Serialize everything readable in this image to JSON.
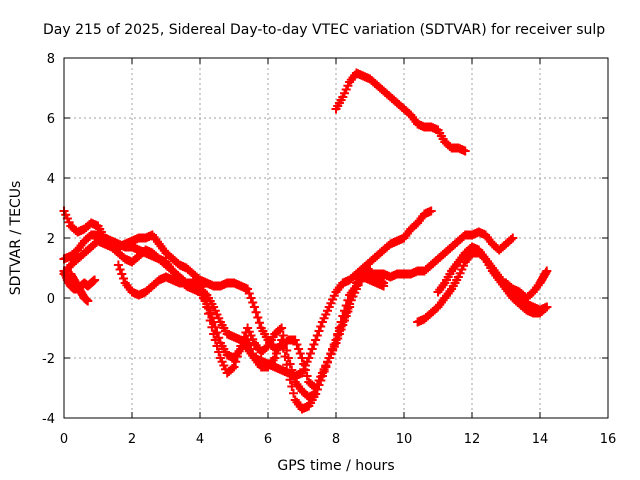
{
  "chart_data": {
    "type": "scatter",
    "title": "Day 215 of 2025, Sidereal Day-to-day VTEC variation (SDTVAR) for receiver sulp",
    "xlabel": "GPS time / hours",
    "ylabel": "SDTVAR / TECUs",
    "xlim": [
      0,
      16
    ],
    "ylim": [
      -4,
      8
    ],
    "xticks": [
      "0",
      "2",
      "4",
      "6",
      "8",
      "10",
      "12",
      "14",
      "16"
    ],
    "yticks": [
      "-4",
      "-2",
      "0",
      "2",
      "4",
      "6",
      "8"
    ],
    "grid": true,
    "marker": "plus",
    "color": "#ff0000",
    "series": [
      {
        "x": [
          0.0,
          0.2,
          0.4,
          0.6,
          0.8,
          1.0,
          1.2,
          1.4,
          1.6,
          1.8,
          2.0,
          2.2,
          2.4,
          2.6,
          2.8,
          3.0,
          3.2,
          3.4,
          3.6,
          3.8,
          4.0,
          4.2,
          4.4,
          4.6,
          4.8,
          5.0,
          5.2,
          5.4,
          5.6,
          5.8,
          6.0,
          6.2,
          6.4,
          6.6,
          6.8,
          7.0,
          7.2,
          7.4,
          7.6,
          7.8,
          8.0,
          8.2,
          8.4,
          8.6,
          8.8,
          9.0,
          9.2,
          9.4,
          9.6,
          9.8,
          10.0,
          10.2,
          10.4,
          10.6,
          10.8
        ],
        "y": [
          2.9,
          2.4,
          2.2,
          2.3,
          2.5,
          2.4,
          2.0,
          1.9,
          1.8,
          1.7,
          1.7,
          1.6,
          1.5,
          1.4,
          1.3,
          1.1,
          0.9,
          0.7,
          0.5,
          0.5,
          0.3,
          0.1,
          -0.3,
          -0.8,
          -1.2,
          -1.3,
          -1.4,
          -1.7,
          -2.0,
          -2.1,
          -2.2,
          -2.3,
          -2.4,
          -2.5,
          -2.6,
          -2.5,
          -2.0,
          -1.4,
          -0.8,
          -0.3,
          0.2,
          0.5,
          0.6,
          0.8,
          1.0,
          1.2,
          1.4,
          1.6,
          1.8,
          1.9,
          2.0,
          2.3,
          2.5,
          2.8,
          2.9
        ]
      },
      {
        "x": [
          0.0,
          0.2,
          0.4,
          0.6,
          0.8,
          1.0,
          1.2,
          1.4,
          1.6,
          1.8,
          2.0,
          2.2,
          2.4,
          2.6,
          2.8,
          3.0,
          3.2,
          3.4,
          3.6,
          3.8,
          4.0,
          4.2,
          4.4,
          4.6,
          4.8,
          5.0,
          5.2,
          5.4,
          5.6,
          5.8,
          6.0,
          6.2,
          6.4,
          6.6,
          6.8,
          7.0,
          7.2,
          7.4,
          7.6,
          7.8,
          8.0,
          8.2,
          8.4,
          8.6,
          8.8,
          9.0,
          9.2,
          9.4
        ],
        "y": [
          1.3,
          1.4,
          1.6,
          1.9,
          2.1,
          2.1,
          2.0,
          1.8,
          1.7,
          1.8,
          1.9,
          2.0,
          2.0,
          2.1,
          1.8,
          1.5,
          1.3,
          1.1,
          1.0,
          0.8,
          0.6,
          -0.3,
          -1.2,
          -2.0,
          -2.5,
          -2.3,
          -1.6,
          -1.0,
          -1.5,
          -1.8,
          -1.6,
          -1.2,
          -1.0,
          -2.0,
          -2.8,
          -3.1,
          -3.3,
          -3.2,
          -2.6,
          -2.0,
          -1.4,
          -0.6,
          0.1,
          0.4,
          0.7,
          0.6,
          0.5,
          0.4
        ]
      },
      {
        "x": [
          0.0,
          0.2,
          0.4,
          0.6,
          0.8,
          1.0,
          1.2,
          1.4,
          1.6,
          1.8,
          2.0,
          2.2,
          2.4,
          2.6,
          2.8,
          3.0,
          3.2,
          3.4,
          3.6,
          3.8,
          4.0,
          4.2,
          4.4,
          4.6,
          4.8,
          5.0,
          5.2,
          5.4,
          5.6,
          5.8,
          6.0,
          6.2,
          6.4,
          6.6,
          6.8,
          7.0,
          7.2,
          7.4,
          7.6,
          7.8,
          8.0,
          8.2,
          8.4
        ],
        "y": [
          0.8,
          1.1,
          1.3,
          1.5,
          1.7,
          1.9,
          1.8,
          1.7,
          1.5,
          1.3,
          1.2,
          1.4,
          1.6,
          1.5,
          1.3,
          1.2,
          0.9,
          0.6,
          0.4,
          0.3,
          0.2,
          -0.2,
          -0.8,
          -1.5,
          -1.9,
          -2.0,
          -1.7,
          -1.4,
          -2.0,
          -2.3,
          -2.3,
          -2.0,
          -1.4,
          -2.5,
          -3.4,
          -3.7,
          -3.6,
          -3.2,
          -2.6,
          -2.0,
          -1.5,
          -0.9,
          -0.3
        ]
      },
      {
        "x": [
          0.0,
          0.1,
          0.2,
          0.3,
          0.4,
          0.5,
          0.6,
          0.7,
          0.8,
          0.9
        ],
        "y": [
          0.9,
          0.6,
          0.4,
          0.3,
          0.3,
          0.4,
          0.5,
          0.4,
          0.5,
          0.6
        ]
      },
      {
        "x": [
          0.2,
          0.3,
          0.4,
          0.5,
          0.6,
          0.7
        ],
        "y": [
          0.8,
          0.6,
          0.4,
          0.2,
          0.0,
          -0.1
        ]
      },
      {
        "x": [
          1.6,
          1.8,
          2.0,
          2.2,
          2.4,
          2.6,
          2.8,
          3.0,
          3.2,
          3.4,
          3.6,
          3.8,
          4.0,
          4.2,
          4.4,
          4.6,
          4.8,
          5.0,
          5.2,
          5.4,
          5.6,
          5.8,
          6.0,
          6.2,
          6.4,
          6.6,
          6.8,
          7.0,
          7.2,
          7.4,
          7.6,
          7.8,
          8.0,
          8.2,
          8.4,
          8.6,
          8.8,
          9.0,
          9.2,
          9.4
        ],
        "y": [
          1.1,
          0.5,
          0.2,
          0.1,
          0.2,
          0.4,
          0.6,
          0.7,
          0.6,
          0.5,
          0.5,
          0.5,
          0.6,
          0.5,
          0.4,
          0.4,
          0.5,
          0.5,
          0.4,
          0.3,
          -0.3,
          -1.0,
          -1.4,
          -1.7,
          -1.6,
          -1.4,
          -1.4,
          -2.0,
          -2.8,
          -3.0,
          -2.5,
          -2.0,
          -1.4,
          -0.8,
          -0.2,
          0.3,
          0.8,
          0.9,
          0.7,
          0.5
        ]
      },
      {
        "x": [
          8.0,
          8.2,
          8.4,
          8.6,
          8.8,
          9.0,
          9.2,
          9.4,
          9.6,
          9.8,
          10.0,
          10.2,
          10.4,
          10.6,
          10.8,
          11.0,
          11.2,
          11.4,
          11.6,
          11.8
        ],
        "y": [
          6.3,
          6.7,
          7.2,
          7.5,
          7.4,
          7.3,
          7.1,
          6.9,
          6.7,
          6.5,
          6.3,
          6.1,
          5.8,
          5.7,
          5.7,
          5.6,
          5.2,
          5.0,
          5.0,
          4.9
        ]
      },
      {
        "x": [
          8.6,
          8.8,
          9.0,
          9.2,
          9.4,
          9.6,
          9.8,
          10.0,
          10.2,
          10.4,
          10.6,
          10.8,
          11.0,
          11.2,
          11.4,
          11.6,
          11.8,
          12.0,
          12.2,
          12.4,
          12.6,
          12.8,
          13.0,
          13.2
        ],
        "y": [
          0.5,
          0.7,
          0.8,
          0.8,
          0.8,
          0.7,
          0.8,
          0.8,
          0.8,
          0.9,
          0.9,
          1.1,
          1.3,
          1.5,
          1.7,
          1.9,
          2.1,
          2.1,
          2.2,
          2.1,
          1.8,
          1.6,
          1.8,
          2.0
        ]
      },
      {
        "x": [
          10.4,
          10.6,
          10.8,
          11.0,
          11.2,
          11.4,
          11.6,
          11.8,
          12.0,
          12.2,
          12.4,
          12.6,
          12.8,
          13.0,
          13.2,
          13.4,
          13.6,
          13.8,
          14.0,
          14.2
        ],
        "y": [
          -0.8,
          -0.7,
          -0.5,
          -0.3,
          0.0,
          0.3,
          0.7,
          1.2,
          1.5,
          1.5,
          1.3,
          1.0,
          0.7,
          0.4,
          0.2,
          0.0,
          -0.2,
          -0.3,
          -0.4,
          -0.3
        ]
      },
      {
        "x": [
          11.0,
          11.2,
          11.4,
          11.6,
          11.8,
          12.0,
          12.2,
          12.4,
          12.6,
          12.8,
          13.0,
          13.2,
          13.4,
          13.6,
          13.8,
          14.0,
          14.2
        ],
        "y": [
          0.2,
          0.5,
          0.9,
          1.2,
          1.5,
          1.7,
          1.6,
          1.3,
          0.9,
          0.6,
          0.3,
          0.0,
          -0.2,
          -0.4,
          -0.5,
          -0.5,
          -0.3
        ]
      },
      {
        "x": [
          13.0,
          13.2,
          13.4,
          13.6,
          13.8,
          14.0,
          14.1,
          14.2
        ],
        "y": [
          0.5,
          0.3,
          0.2,
          0.0,
          0.2,
          0.5,
          0.7,
          0.9
        ]
      }
    ]
  }
}
